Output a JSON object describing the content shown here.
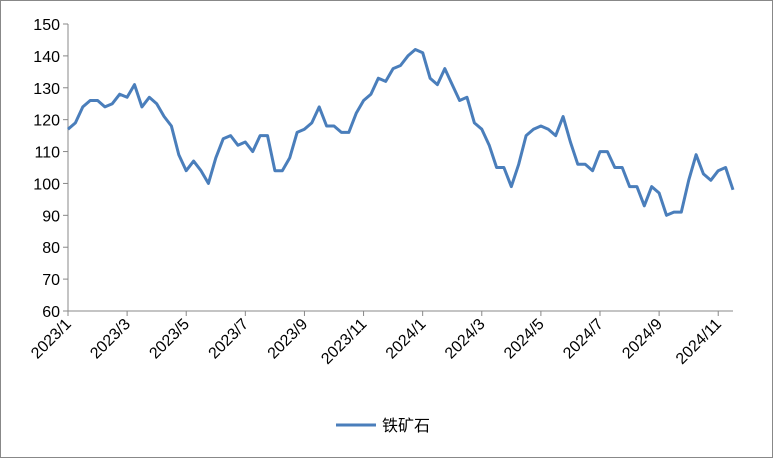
{
  "chart_data": {
    "type": "line",
    "categories": [
      "2023/1",
      null,
      null,
      null,
      null,
      null,
      null,
      null,
      "2023/3",
      null,
      null,
      null,
      null,
      null,
      null,
      null,
      "2023/5",
      null,
      null,
      null,
      null,
      null,
      null,
      null,
      "2023/7",
      null,
      null,
      null,
      null,
      null,
      null,
      null,
      "2023/9",
      null,
      null,
      null,
      null,
      null,
      null,
      null,
      "2023/11",
      null,
      null,
      null,
      null,
      null,
      null,
      null,
      "2024/1",
      null,
      null,
      null,
      null,
      null,
      null,
      null,
      "2024/3",
      null,
      null,
      null,
      null,
      null,
      null,
      null,
      "2024/5",
      null,
      null,
      null,
      null,
      null,
      null,
      null,
      "2024/7",
      null,
      null,
      null,
      null,
      null,
      null,
      null,
      "2024/9",
      null,
      null,
      null,
      null,
      null,
      null,
      null,
      "2024/11",
      null,
      null
    ],
    "series": [
      {
        "name": "铁矿石",
        "color": "#4a7ebb",
        "values": [
          117,
          119,
          124,
          126,
          126,
          124,
          125,
          128,
          127,
          131,
          124,
          127,
          125,
          121,
          118,
          109,
          104,
          107,
          104,
          100,
          108,
          114,
          115,
          112,
          113,
          110,
          115,
          115,
          104,
          104,
          108,
          116,
          117,
          119,
          124,
          118,
          118,
          116,
          116,
          122,
          126,
          128,
          133,
          132,
          136,
          137,
          140,
          142,
          141,
          133,
          131,
          136,
          131,
          126,
          127,
          119,
          117,
          112,
          105,
          105,
          99,
          106,
          115,
          117,
          118,
          117,
          115,
          121,
          113,
          106,
          106,
          104,
          110,
          110,
          105,
          105,
          99,
          99,
          93,
          99,
          97,
          90,
          91,
          91,
          101,
          109,
          103,
          101,
          104,
          105,
          98
        ]
      }
    ],
    "ylim": [
      60,
      150
    ],
    "yticks": [
      60,
      70,
      80,
      90,
      100,
      110,
      120,
      130,
      140,
      150
    ],
    "grid": false,
    "legend": "bottom"
  }
}
